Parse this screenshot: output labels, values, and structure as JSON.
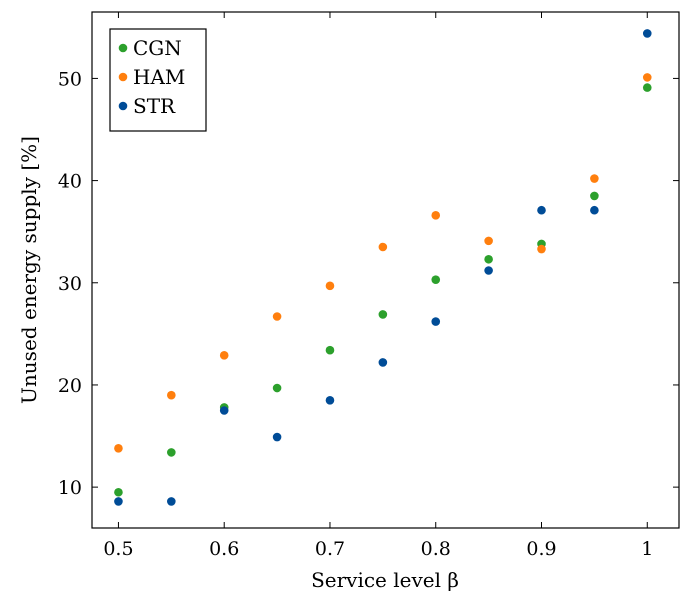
{
  "chart_data": {
    "type": "scatter",
    "title": "",
    "xlabel": "Service level β",
    "ylabel": "Unused energy supply [%]",
    "xlim": [
      0.475,
      1.03
    ],
    "ylim": [
      6,
      56.5
    ],
    "x_ticks": [
      0.5,
      0.6,
      0.7,
      0.8,
      0.9,
      1.0
    ],
    "x_tick_labels": [
      "0.5",
      "0.6",
      "0.7",
      "0.8",
      "0.9",
      "1"
    ],
    "y_ticks": [
      10,
      20,
      30,
      40,
      50
    ],
    "y_tick_labels": [
      "10",
      "20",
      "30",
      "40",
      "50"
    ],
    "grid": false,
    "legend_position": "top-left",
    "x": [
      0.5,
      0.55,
      0.6,
      0.65,
      0.7,
      0.75,
      0.8,
      0.85,
      0.9,
      0.95,
      1.0
    ],
    "series": [
      {
        "name": "CGN",
        "color": "#2ca02c",
        "values": [
          9.5,
          13.4,
          17.8,
          19.7,
          23.4,
          26.9,
          30.3,
          32.3,
          33.8,
          38.5,
          49.1
        ]
      },
      {
        "name": "HAM",
        "color": "#ff7f0e",
        "values": [
          13.8,
          19.0,
          22.9,
          26.7,
          29.7,
          33.5,
          36.6,
          34.1,
          33.3,
          40.2,
          50.1
        ]
      },
      {
        "name": "STR",
        "color": "#004c97",
        "values": [
          8.6,
          8.6,
          17.5,
          14.9,
          18.5,
          22.2,
          26.2,
          31.2,
          37.1,
          37.1,
          54.4
        ]
      }
    ]
  }
}
